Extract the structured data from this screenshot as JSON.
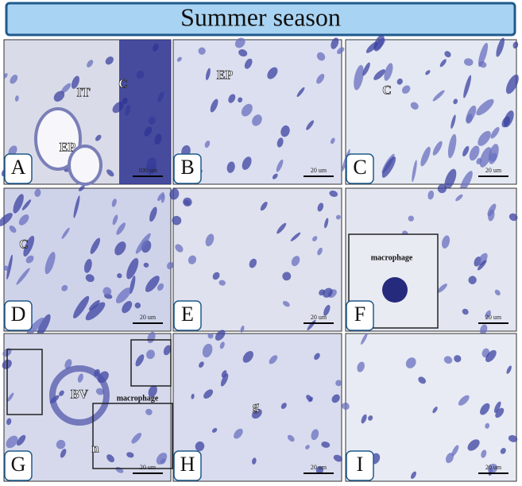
{
  "header": {
    "title": "Summer season"
  },
  "panels": [
    {
      "letter": "A",
      "labels": [
        "IT",
        "C",
        "EP"
      ],
      "scale": "100 um"
    },
    {
      "letter": "B",
      "labels": [
        "EP"
      ],
      "scale": "20 um"
    },
    {
      "letter": "C",
      "labels": [
        "C"
      ],
      "scale": "20 um"
    },
    {
      "letter": "D",
      "labels": [
        "C"
      ],
      "scale": "20 um"
    },
    {
      "letter": "E",
      "labels": [],
      "scale": "20 um"
    },
    {
      "letter": "F",
      "labels": [
        "macrophage"
      ],
      "scale": "20 um"
    },
    {
      "letter": "G",
      "labels": [
        "BV",
        "macrophage",
        "n"
      ],
      "scale": "20 um"
    },
    {
      "letter": "H",
      "labels": [
        "g"
      ],
      "scale": "20 um"
    },
    {
      "letter": "I",
      "labels": [],
      "scale": "20 um"
    }
  ]
}
